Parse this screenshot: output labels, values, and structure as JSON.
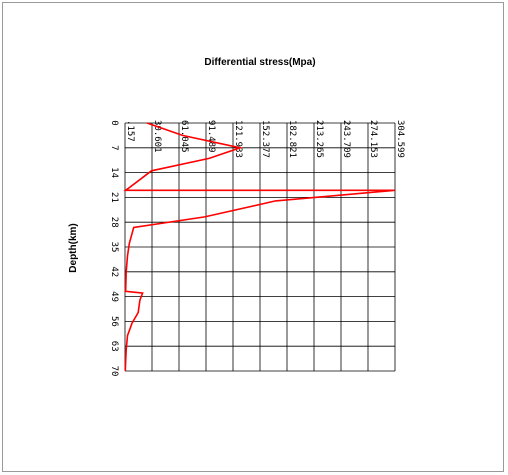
{
  "chart_data": {
    "type": "line",
    "title": "Differential stress(Mpa)",
    "xlabel": "Differential stress(Mpa)",
    "ylabel": "Depth(km)",
    "x_tick_labels": [
      ".157",
      "30.601",
      "61.045",
      "91.489",
      "121.933",
      "152.377",
      "182.821",
      "213.265",
      "243.709",
      "274.153",
      "304.599"
    ],
    "y_tick_labels": [
      "0",
      "7",
      "14",
      "21",
      "28",
      "35",
      "42",
      "49",
      "56",
      "63",
      "70"
    ],
    "xlim": [
      0.157,
      304.599
    ],
    "ylim": [
      0,
      70
    ],
    "x_axis_position": "top",
    "y_axis_inverted": true,
    "grid": true,
    "colors": {
      "series": "#ff0000",
      "grid": "#000000"
    },
    "series": [
      {
        "x": [
          25,
          65,
          130,
          95,
          30,
          1,
          152,
          304.6,
          170,
          90,
          10,
          5,
          3,
          1.5,
          1,
          0.5,
          20,
          17,
          15,
          8,
          3,
          1.5,
          1,
          0.5
        ],
        "y": [
          0,
          3.5,
          7,
          10,
          13.5,
          19,
          19,
          19,
          22,
          26.5,
          29.5,
          34,
          37.5,
          42,
          47,
          47.5,
          48,
          50,
          53.5,
          56.5,
          60,
          64,
          67,
          70
        ]
      }
    ]
  }
}
